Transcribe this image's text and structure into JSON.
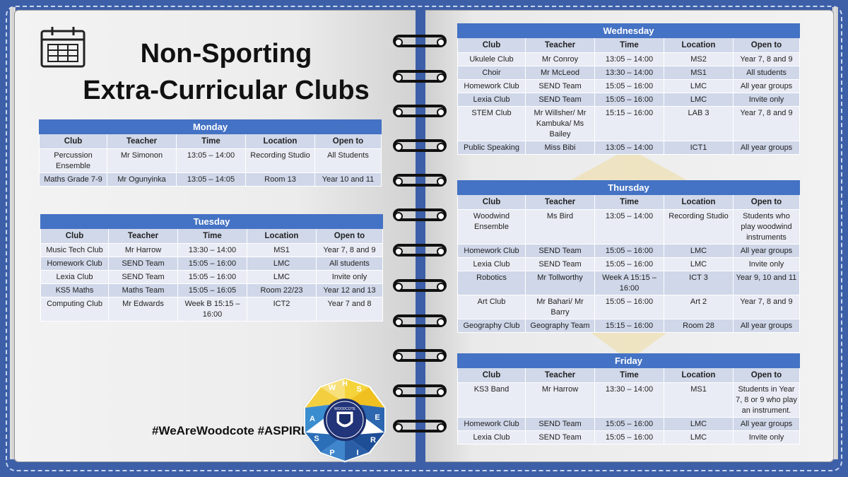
{
  "title": {
    "line1": "Non-Sporting",
    "line2": "Extra-Curricular Clubs"
  },
  "columns": [
    "Club",
    "Teacher",
    "Time",
    "Location",
    "Open to"
  ],
  "days": [
    {
      "day": "Monday",
      "rows": [
        [
          "Percussion Ensemble",
          "Mr Simonon",
          "13:05 – 14:00",
          "Recording Studio",
          "All Students"
        ],
        [
          "Maths Grade 7-9",
          "Mr Ogunyinka",
          "13:05 – 14:05",
          "Room 13",
          "Year 10 and 11"
        ]
      ]
    },
    {
      "day": "Tuesday",
      "rows": [
        [
          "Music Tech Club",
          "Mr Harrow",
          "13:30 – 14:00",
          "MS1",
          "Year 7, 8 and 9"
        ],
        [
          "Homework Club",
          "SEND Team",
          "15:05 – 16:00",
          "LMC",
          "All students"
        ],
        [
          "Lexia Club",
          "SEND Team",
          "15:05 – 16:00",
          "LMC",
          "Invite only"
        ],
        [
          "KS5 Maths",
          "Maths Team",
          "15:05 – 16:05",
          "Room 22/23",
          "Year 12 and 13"
        ],
        [
          "Computing Club",
          "Mr Edwards",
          "Week B 15:15 – 16:00",
          "ICT2",
          "Year 7 and 8"
        ]
      ]
    },
    {
      "day": "Wednesday",
      "rows": [
        [
          "Ukulele Club",
          "Mr Conroy",
          "13:05 – 14:00",
          "MS2",
          "Year 7, 8 and 9"
        ],
        [
          "Choir",
          "Mr McLeod",
          "13:30 – 14:00",
          "MS1",
          "All students"
        ],
        [
          "Homework Club",
          "SEND Team",
          "15:05 – 16:00",
          "LMC",
          "All year groups"
        ],
        [
          "Lexia Club",
          "SEND Team",
          "15:05 – 16:00",
          "LMC",
          "Invite only"
        ],
        [
          "STEM Club",
          "Mr Willsher/ Mr Kambuka/ Ms Bailey",
          "15:15 – 16:00",
          "LAB 3",
          "Year 7, 8 and 9"
        ],
        [
          "Public Speaking",
          "Miss Bibi",
          "13:05 – 14:00",
          "ICT1",
          "All year groups"
        ]
      ]
    },
    {
      "day": "Thursday",
      "rows": [
        [
          "Woodwind Ensemble",
          "Ms Bird",
          "13:05 – 14:00",
          "Recording Studio",
          "Students who play woodwind instruments"
        ],
        [
          "Homework Club",
          "SEND Team",
          "15:05 – 16:00",
          "LMC",
          "All year groups"
        ],
        [
          "Lexia Club",
          "SEND Team",
          "15:05 – 16:00",
          "LMC",
          "Invite only"
        ],
        [
          "Robotics",
          "Mr Tollworthy",
          "Week A 15:15 – 16:00",
          "ICT 3",
          "Year 9, 10 and 11"
        ],
        [
          "Art Club",
          "Mr Bahari/ Mr Barry",
          "15:05 – 16:00",
          "Art 2",
          "Year 7, 8 and 9"
        ],
        [
          "Geography Club",
          "Geography Team",
          "15:15 – 16:00",
          "Room 28",
          "All year groups"
        ]
      ]
    },
    {
      "day": "Friday",
      "rows": [
        [
          "KS3 Band",
          "Mr Harrow",
          "13:30 – 14:00",
          "MS1",
          "Students in Year 7, 8 or 9 who play an instrument."
        ],
        [
          "Homework Club",
          "SEND Team",
          "15:05 – 16:00",
          "LMC",
          "All year groups"
        ],
        [
          "Lexia Club",
          "SEND Team",
          "15:05 – 16:00",
          "LMC",
          "Invite only"
        ]
      ]
    }
  ],
  "hashtags": "#WeAreWoodcote  #ASPIRE",
  "logo": {
    "letters_top": [
      "W",
      "H",
      "S"
    ],
    "letters_bottom": [
      "A",
      "S",
      "P",
      "I",
      "R",
      "E"
    ],
    "crest_text": "WOODCOTE"
  },
  "colors": {
    "frame": "#3d5fa8",
    "header": "#4472c4",
    "row_light": "#e9ecf4",
    "row_dark": "#cfd7e9",
    "col_header": "#d0d8ea"
  },
  "icons": [
    "calendar-icon",
    "school-logo"
  ]
}
